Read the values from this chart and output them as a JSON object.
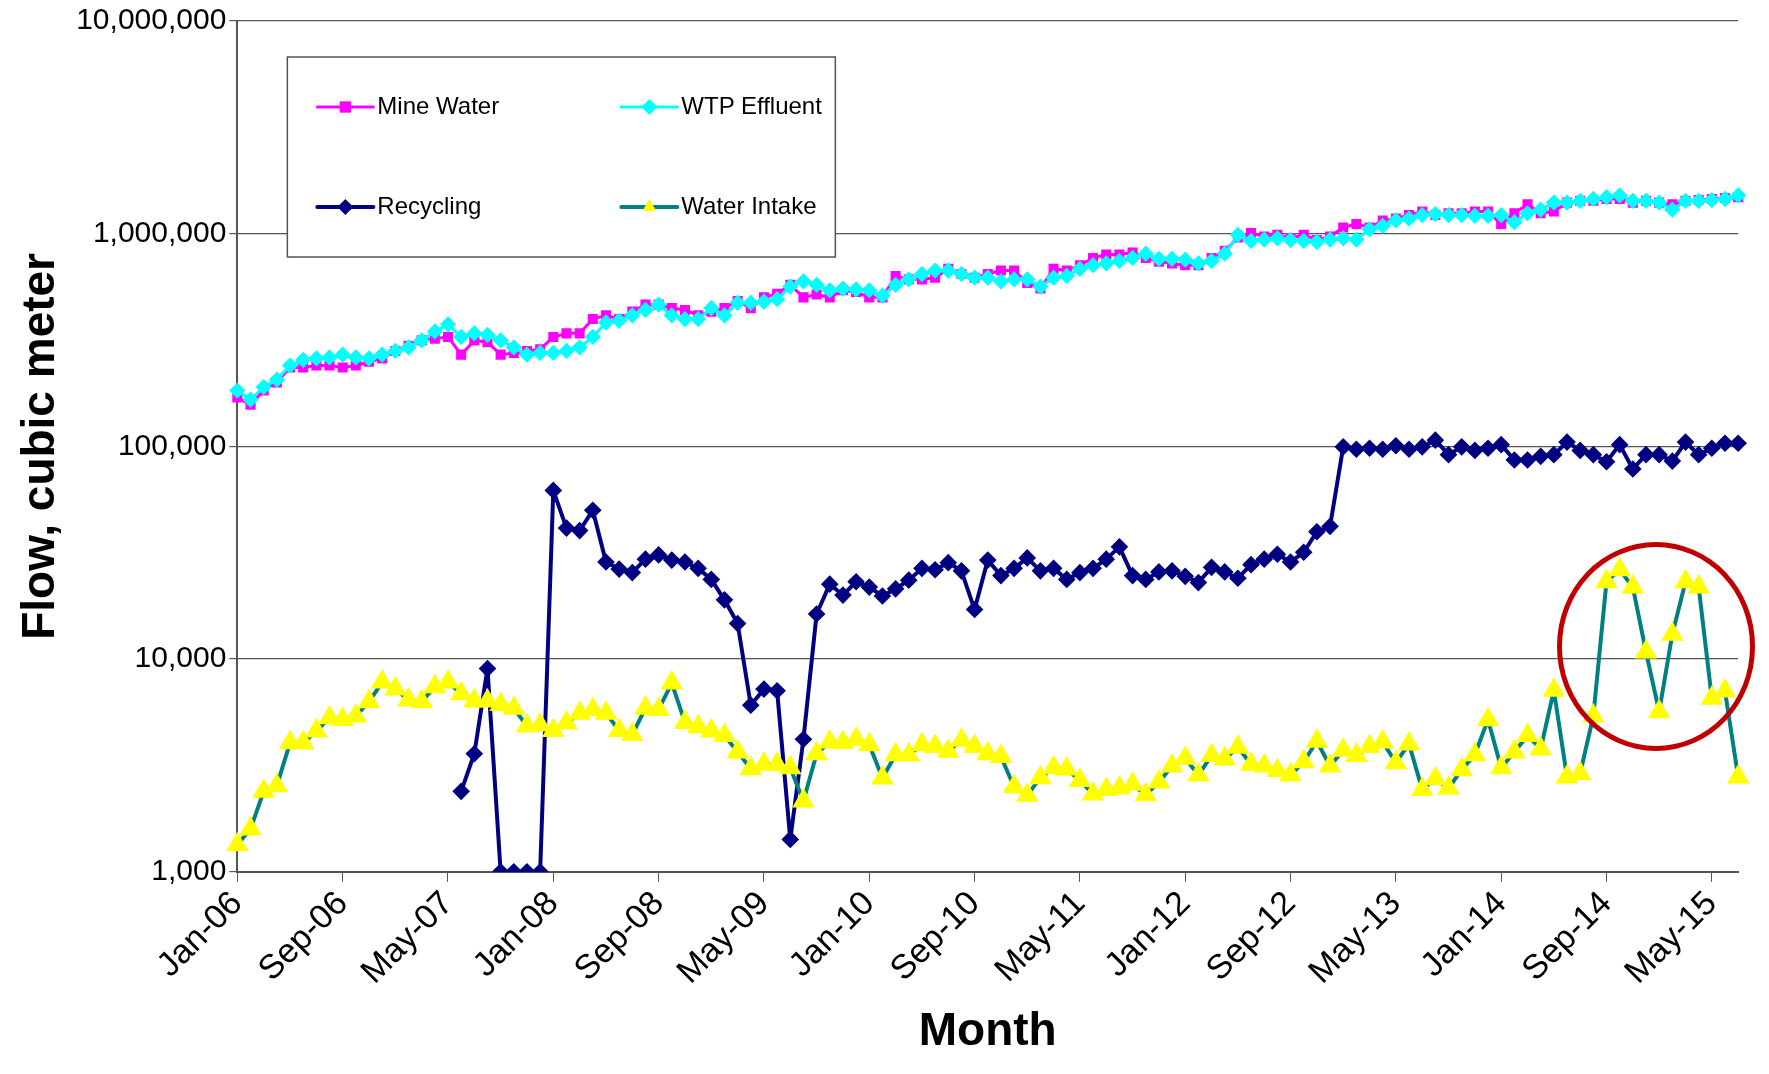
{
  "chart_data": {
    "type": "line",
    "xlabel": "Month",
    "ylabel": "Flow, cubic meter",
    "categories": [
      "Jan-06",
      null,
      null,
      null,
      null,
      null,
      null,
      null,
      "Sep-06",
      null,
      null,
      null,
      null,
      null,
      null,
      null,
      "May-07",
      null,
      null,
      null,
      null,
      null,
      null,
      null,
      "Jan-08",
      null,
      null,
      null,
      null,
      null,
      null,
      null,
      "Sep-08",
      null,
      null,
      null,
      null,
      null,
      null,
      null,
      "May-09",
      null,
      null,
      null,
      null,
      null,
      null,
      null,
      "Jan-10",
      null,
      null,
      null,
      null,
      null,
      null,
      null,
      "Sep-10",
      null,
      null,
      null,
      null,
      null,
      null,
      null,
      "May-11",
      null,
      null,
      null,
      null,
      null,
      null,
      null,
      "Jan-12",
      null,
      null,
      null,
      null,
      null,
      null,
      null,
      "Sep-12",
      null,
      null,
      null,
      null,
      null,
      null,
      null,
      "May-13",
      null,
      null,
      null,
      null,
      null,
      null,
      null,
      "Jan-14",
      null,
      null,
      null,
      null,
      null,
      null,
      null,
      "Sep-14",
      null,
      null,
      null,
      null,
      null,
      null,
      null,
      "May-15",
      null,
      null
    ],
    "series": [
      {
        "name": "Mine Water",
        "color": "#ff00ff",
        "marker": "square",
        "values": [
          170000,
          157000,
          183000,
          200000,
          235000,
          235000,
          240000,
          240000,
          235000,
          240000,
          250000,
          259000,
          281000,
          297000,
          315000,
          321000,
          327000,
          270000,
          315000,
          309000,
          270000,
          275000,
          281000,
          286000,
          327000,
          340000,
          340000,
          397000,
          413000,
          397000,
          430000,
          464000,
          464000,
          447000,
          438000,
          413000,
          430000,
          447000,
          483000,
          446000,
          502000,
          522000,
          575000,
          502000,
          518000,
          502000,
          542000,
          532000,
          502000,
          502000,
          633000,
          610000,
          610000,
          621000,
          684000,
          646000,
          621000,
          646000,
          671000,
          671000,
          586000,
          552000,
          684000,
          671000,
          711000,
          769000,
          799000,
          799000,
          815000,
          769000,
          739000,
          725000,
          711000,
          711000,
          769000,
          830000,
          960000,
          1008000,
          970000,
          988000,
          951000,
          988000,
          933000,
          970000,
          1069000,
          1110000,
          1069000,
          1154000,
          1177000,
          1224000,
          1271000,
          1224000,
          1247000,
          1247000,
          1271000,
          1271000,
          1110000,
          1247000,
          1374000,
          1247000,
          1271000,
          1400000,
          1428000,
          1428000,
          1456000,
          1456000,
          1400000,
          1428000,
          1400000,
          1374000,
          1428000,
          1440000,
          1456000,
          1473000,
          1485000
        ]
      },
      {
        "name": "WTP Effluent",
        "color": "#00ffff",
        "marker": "diamond",
        "values": [
          183000,
          166000,
          190000,
          206000,
          240000,
          255000,
          259000,
          262000,
          270000,
          262000,
          259000,
          270000,
          281000,
          292000,
          315000,
          347000,
          375000,
          327000,
          340000,
          334000,
          315000,
          292000,
          270000,
          275000,
          275000,
          281000,
          292000,
          327000,
          382000,
          390000,
          413000,
          438000,
          464000,
          413000,
          397000,
          397000,
          447000,
          413000,
          473000,
          473000,
          479000,
          492000,
          564000,
          597000,
          575000,
          542000,
          552000,
          547000,
          542000,
          512000,
          575000,
          610000,
          646000,
          671000,
          671000,
          646000,
          621000,
          621000,
          597000,
          610000,
          610000,
          564000,
          621000,
          633000,
          684000,
          711000,
          725000,
          745000,
          769000,
          805000,
          762000,
          762000,
          755000,
          725000,
          745000,
          805000,
          988000,
          925000,
          939000,
          951000,
          933000,
          925000,
          915000,
          939000,
          951000,
          939000,
          1048000,
          1089000,
          1154000,
          1177000,
          1224000,
          1235000,
          1224000,
          1224000,
          1212000,
          1212000,
          1224000,
          1132000,
          1247000,
          1297000,
          1400000,
          1400000,
          1428000,
          1456000,
          1484000,
          1514000,
          1428000,
          1428000,
          1400000,
          1297000,
          1428000,
          1428000,
          1440000,
          1456000,
          1514000
        ]
      },
      {
        "name": "Recycling",
        "color": "#000080",
        "marker": "diamond",
        "values": [
          null,
          null,
          null,
          null,
          null,
          null,
          null,
          null,
          null,
          null,
          null,
          null,
          null,
          null,
          null,
          null,
          null,
          2390,
          3590,
          9020,
          1000,
          1000,
          1000,
          1000,
          62100,
          41300,
          40200,
          50100,
          28600,
          26500,
          25500,
          29500,
          30900,
          29200,
          28600,
          26700,
          23700,
          19000,
          14700,
          6070,
          7230,
          7100,
          1420,
          4200,
          16300,
          22500,
          20000,
          23100,
          21800,
          19800,
          21400,
          23500,
          26700,
          26300,
          28400,
          26000,
          17100,
          29200,
          24700,
          26700,
          29900,
          26000,
          26700,
          23700,
          25500,
          26700,
          29500,
          33700,
          24700,
          23700,
          25700,
          26000,
          24500,
          22900,
          27000,
          25700,
          24000,
          27800,
          29500,
          31100,
          28600,
          31800,
          39700,
          42100,
          99500,
          97000,
          98000,
          97000,
          100700,
          97000,
          99500,
          107000,
          91400,
          99500,
          95700,
          98000,
          101900,
          86300,
          86300,
          89800,
          91400,
          104800,
          95700,
          91400,
          84700,
          101900,
          78300,
          91400,
          91400,
          85300,
          104800,
          91400,
          98000,
          103500,
          103500
        ]
      },
      {
        "name": "Water Intake",
        "color": "#008080",
        "marker": "triangle",
        "colors": [
          "#ffff00",
          "#ffff00",
          "#ffff00",
          "#ffff00",
          "#ffff00",
          "#ffff00",
          "#ffff00",
          "#ffff00",
          "#ffff00",
          "#ffff00",
          "#ffff00",
          "#ffff00",
          "#ffff00",
          "#ffff00",
          "#ffff00",
          "#ffff00",
          "#ffff00",
          "#ffff00",
          "#ffff00",
          "#ffff00",
          "#ffff00",
          "#ffff00",
          "#ffff00",
          "#ffff00",
          "#ffff00",
          "#ffff00",
          "#ffff00",
          "#ffff00",
          "#ffff00",
          "#ffff00",
          "#ffff00",
          "#ffff00",
          "#ffff00",
          "#ffff00",
          "#ffff00",
          "#ffff00",
          "#ffff00",
          "#ffff00",
          "#ffff00",
          "#ffff00",
          "#ffff00",
          "#ffff00",
          "#ffff00",
          "#ffff00",
          "#ffff00",
          "#ffff00",
          "#ffff00",
          "#ffff00",
          "#ffff00",
          "#ffff00",
          "#ffff00",
          "#ffff00",
          "#ffff00",
          "#ffff00",
          "#ffff00",
          "#ffff00",
          "#ffff00",
          "#ffff00",
          "#ffff00",
          "#ffff00",
          "#ffff00",
          "#ffff00",
          "#ffff00",
          "#ffff00",
          "#ffff00",
          "#ffff00",
          "#ffff00",
          "#ffff00",
          "#ffff00",
          "#ffff00",
          "#ffff00",
          "#ffff00",
          "#ffff00",
          "#ffff00",
          "#ffff00",
          "#ffff00",
          "#ffff00",
          "#ffff00",
          "#ffff00",
          "#ffff00",
          "#ffff00",
          "#ffff00",
          "#ffff00",
          "#ffff00",
          "#ffff00",
          "#ffff00",
          "#ffff00",
          "#ffff00",
          "#ffff00",
          "#ffff00",
          "#ffff00",
          "#ffff00",
          "#ffff00",
          "#ffff00",
          "#ffff00",
          "#ffff00",
          "#ffff00",
          "#ffff00",
          "#ffff00",
          "#ffff00",
          "#ffff00",
          "#ffff00",
          "#ffff00",
          "#ffff00",
          "#ffff00",
          "#ffff00",
          "#ffff00",
          "#ffff00",
          "#ffff00",
          "#ffff00",
          "#ffff00",
          "#ffff00",
          "#ffff00",
          "#ffff00",
          "#ffff00"
        ],
        "values": [
          1340,
          1590,
          2390,
          2540,
          4040,
          4040,
          4590,
          5300,
          5200,
          5400,
          6300,
          7800,
          7230,
          6430,
          6300,
          7420,
          7800,
          6870,
          6350,
          6350,
          6110,
          5880,
          4840,
          4900,
          4620,
          5000,
          5570,
          5800,
          5570,
          4620,
          4420,
          5880,
          5800,
          7710,
          5040,
          4810,
          4590,
          4370,
          3660,
          3050,
          3200,
          3200,
          3080,
          2150,
          3590,
          4080,
          4050,
          4200,
          3960,
          2760,
          3550,
          3540,
          3960,
          3880,
          3690,
          4150,
          3880,
          3590,
          3480,
          2510,
          2290,
          2770,
          3080,
          3040,
          2690,
          2320,
          2440,
          2480,
          2580,
          2300,
          2640,
          3140,
          3420,
          2850,
          3520,
          3390,
          3850,
          3200,
          3140,
          2990,
          2850,
          3290,
          4110,
          3140,
          3730,
          3520,
          3880,
          4080,
          3260,
          3990,
          2440,
          2740,
          2470,
          3020,
          3550,
          5190,
          3080,
          3660,
          4370,
          3780,
          7140,
          2790,
          2900,
          5400,
          23100,
          26300,
          21800,
          10800,
          5660,
          13100,
          23100,
          21800,
          6550,
          7080,
          2790
        ]
      }
    ],
    "log": true,
    "ylim": [
      1000,
      10000000
    ],
    "yticks": [
      {
        "value": 1000,
        "label": "1,000"
      },
      {
        "value": 10000,
        "label": "10,000"
      },
      {
        "value": 100000,
        "label": "100,000"
      },
      {
        "value": 1000000,
        "label": "1,000,000"
      },
      {
        "value": 10000000,
        "label": "10,000,000"
      }
    ],
    "grid": "y",
    "legend": "top left"
  }
}
